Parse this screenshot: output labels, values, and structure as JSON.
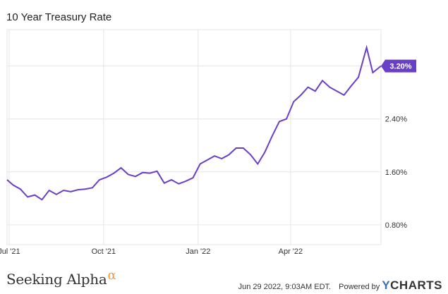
{
  "chart_data": {
    "type": "line",
    "title": "10 Year Treasury Rate",
    "x_ticks": [
      "Jul '21",
      "Oct '21",
      "Jan '22",
      "Apr '22"
    ],
    "y_ticks": [
      "0.80%",
      "1.60%",
      "2.40%",
      "3.20%"
    ],
    "ylim": [
      0.5,
      3.75
    ],
    "xlim": [
      "2021-06-29",
      "2022-06-28"
    ],
    "grid": true,
    "last_value_label": "3.20%",
    "colors": {
      "line": "#6a3fc8",
      "grid": "#e6e6e6"
    },
    "series": [
      {
        "x": [
          "2021-06-29",
          "2021-07-05",
          "2021-07-12",
          "2021-07-19",
          "2021-07-26",
          "2021-08-02",
          "2021-08-09",
          "2021-08-16",
          "2021-08-23",
          "2021-08-30",
          "2021-09-06",
          "2021-09-13",
          "2021-09-20",
          "2021-09-27",
          "2021-10-04",
          "2021-10-11",
          "2021-10-18",
          "2021-10-25",
          "2021-11-01",
          "2021-11-08",
          "2021-11-15",
          "2021-11-22",
          "2021-11-29",
          "2021-12-06",
          "2021-12-13",
          "2021-12-20",
          "2021-12-27",
          "2022-01-03",
          "2022-01-10",
          "2022-01-17",
          "2022-01-24",
          "2022-01-31",
          "2022-02-07",
          "2022-02-14",
          "2022-02-21",
          "2022-02-28",
          "2022-03-07",
          "2022-03-14",
          "2022-03-21",
          "2022-03-28",
          "2022-04-04",
          "2022-04-11",
          "2022-04-18",
          "2022-04-25",
          "2022-05-02",
          "2022-05-09",
          "2022-05-16",
          "2022-05-23",
          "2022-05-30",
          "2022-06-06",
          "2022-06-14",
          "2022-06-20",
          "2022-06-28"
        ],
        "values": [
          1.48,
          1.4,
          1.34,
          1.22,
          1.25,
          1.18,
          1.32,
          1.26,
          1.32,
          1.3,
          1.33,
          1.34,
          1.36,
          1.48,
          1.52,
          1.58,
          1.66,
          1.56,
          1.53,
          1.59,
          1.58,
          1.61,
          1.43,
          1.48,
          1.42,
          1.46,
          1.51,
          1.72,
          1.78,
          1.84,
          1.8,
          1.86,
          1.96,
          1.96,
          1.86,
          1.72,
          1.9,
          2.14,
          2.36,
          2.4,
          2.66,
          2.76,
          2.88,
          2.82,
          2.98,
          2.88,
          2.82,
          2.76,
          2.9,
          3.03,
          3.48,
          3.1,
          3.2
        ]
      }
    ]
  },
  "footer": {
    "brand": "Seeking Alpha",
    "brand_mark": "α",
    "timestamp": "Jun 29 2022, 9:03AM EDT.",
    "powered_by": "Powered by",
    "ycharts_y": "Y",
    "ycharts_rest": "CHARTS"
  }
}
